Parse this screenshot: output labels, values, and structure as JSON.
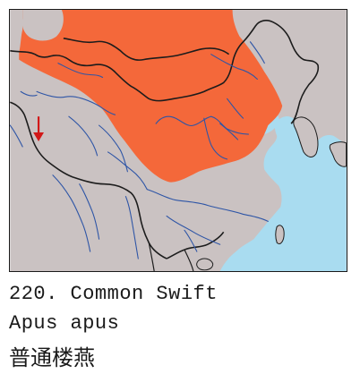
{
  "map": {
    "colors": {
      "land": "#cac2c2",
      "sea": "#a9dcf0",
      "range": "#f4683a",
      "border": "#1c1c1c",
      "river": "#2e55a6",
      "arrow": "#d21818"
    },
    "range_label": "",
    "marker": "range-arrow"
  },
  "caption": {
    "number_line": "220. Common Swift",
    "scientific_name": "Apus apus",
    "chinese_name": "普通楼燕"
  }
}
